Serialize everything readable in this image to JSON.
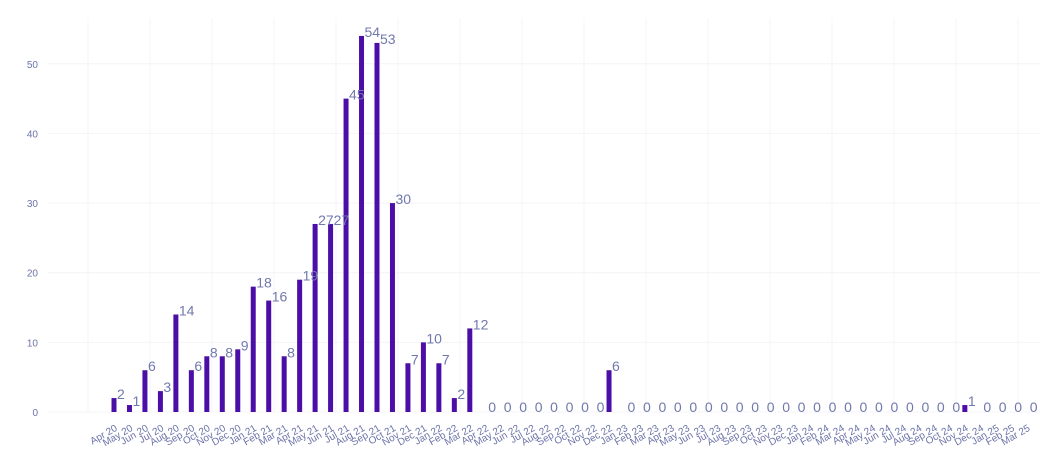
{
  "chart_data": {
    "type": "bar",
    "categories": [
      "Apr 20",
      "May 20",
      "Jun 20",
      "Jul 20",
      "Aug 20",
      "Sep 20",
      "Oct 20",
      "Nov 20",
      "Dec 20",
      "Jan 21",
      "Feb 21",
      "Mar 21",
      "Apr 21",
      "May 21",
      "Jun 21",
      "Jul 21",
      "Aug 21",
      "Sep 21",
      "Oct 21",
      "Nov 21",
      "Dec 21",
      "Jan 22",
      "Feb 22",
      "Mar 22",
      "Apr 22",
      "May 22",
      "Jun 22",
      "Jul 22",
      "Aug 22",
      "Sep 22",
      "Oct 22",
      "Nov 22",
      "Dec 22",
      "Jan 23",
      "Feb 23",
      "Mar 23",
      "Apr 23",
      "May 23",
      "Jun 23",
      "Jul 23",
      "Aug 23",
      "Sep 23",
      "Oct 23",
      "Nov 23",
      "Dec 23",
      "Jan 24",
      "Feb 24",
      "Mar 24",
      "Apr 24",
      "May 24",
      "Jun 24",
      "Jul 24",
      "Aug 24",
      "Sep 24",
      "Oct 24",
      "Nov 24",
      "Dec 24",
      "Jan 25",
      "Feb 25",
      "Mar 25"
    ],
    "values": [
      2,
      1,
      6,
      3,
      14,
      6,
      8,
      8,
      9,
      18,
      16,
      8,
      19,
      27,
      27,
      45,
      54,
      53,
      30,
      7,
      10,
      7,
      2,
      12,
      0,
      0,
      0,
      0,
      0,
      0,
      0,
      0,
      6,
      0,
      0,
      0,
      0,
      0,
      0,
      0,
      0,
      0,
      0,
      0,
      0,
      0,
      0,
      0,
      0,
      0,
      0,
      0,
      0,
      0,
      0,
      1,
      0,
      0,
      0,
      0
    ],
    "yticks": [
      0,
      10,
      20,
      30,
      40,
      50
    ],
    "ylim": [
      0,
      56
    ],
    "grid": true,
    "title": "",
    "xlabel": "",
    "ylabel": "",
    "colors": {
      "bar": "#4b0fa8",
      "label": "#7078ad",
      "tick": "#6b73a8",
      "grid": "#f4f4f8"
    }
  }
}
